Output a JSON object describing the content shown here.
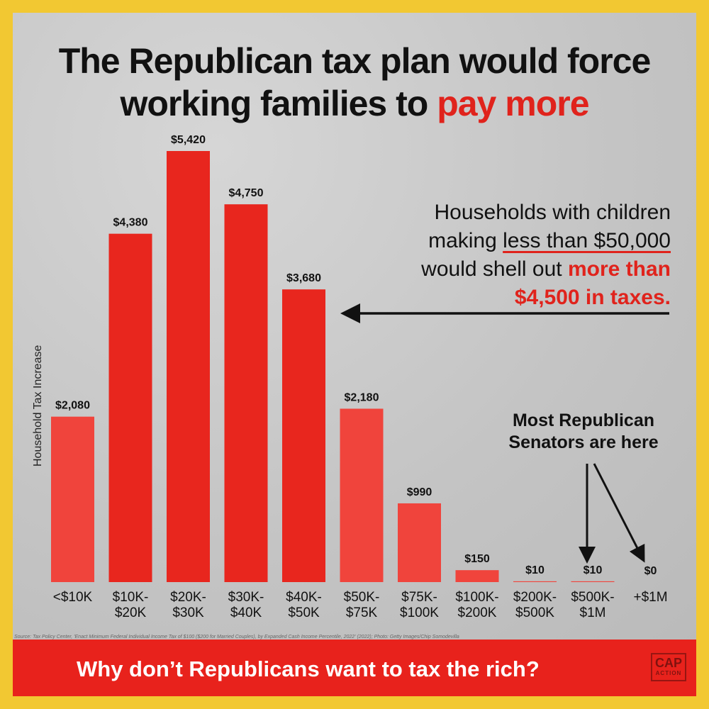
{
  "title": {
    "line1": "The Republican tax plan would force",
    "line2_prefix": "working families to ",
    "line2_highlight": "pay more"
  },
  "callout": {
    "line1": "Households with children",
    "line2_prefix": "making ",
    "line2_underline": "less than $50,000",
    "line3_prefix": "would shell out ",
    "line3_highlight": "more than",
    "line4_highlight": "$4,500 in taxes."
  },
  "note": {
    "line1": "Most Republican",
    "line2": "Senators are here"
  },
  "source": "Source: Tax Policy Center, 'Enact Minimum Federal Individual Income Tax of $100 ($200 for Married Couples), by Expanded Cash Income Percentile, 2022' (2022); Photo: Getty Images/Chip Somodevilla",
  "banner": {
    "text": "Why don’t Republicans want to tax the rich?",
    "logo_top": "CAP",
    "logo_bottom": "ACTION"
  },
  "colors": {
    "bar": "#f0443c",
    "bar_photo": "#e8261e",
    "highlight": "#e0231c",
    "frame": "#f2c832"
  },
  "chart_data": {
    "type": "bar",
    "title": "The Republican tax plan would force working families to pay more",
    "ylabel": "Household Tax Increase",
    "xlabel": "",
    "ylim": [
      0,
      5420
    ],
    "categories": [
      "<$10K",
      "$10K-\n$20K",
      "$20K-\n$30K",
      "$30K-\n$40K",
      "$40K-\n$50K",
      "$50K-\n$75K",
      "$75K-\n$100K",
      "$100K-\n$200K",
      "$200K-\n$500K",
      "$500K-\n$1M",
      "+$1M"
    ],
    "values": [
      2080,
      4380,
      5420,
      4750,
      3680,
      2180,
      990,
      150,
      10,
      10,
      0
    ],
    "value_labels": [
      "$2,080",
      "$4,380",
      "$5,420",
      "$4,750",
      "$3,680",
      "$2,180",
      "$990",
      "$150",
      "$10",
      "$10",
      "$0"
    ],
    "grid": false,
    "legend": "none"
  }
}
